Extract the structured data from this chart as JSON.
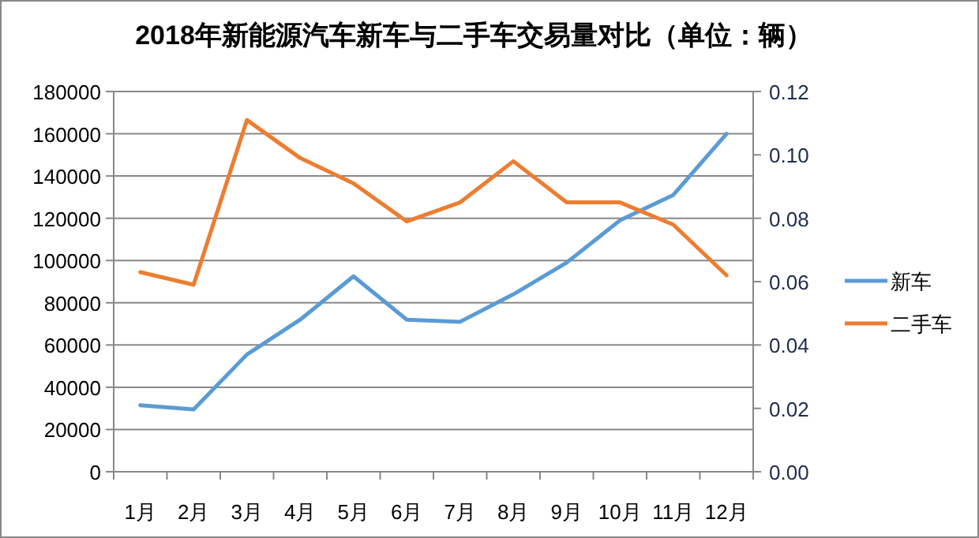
{
  "chart_data": {
    "type": "line",
    "title": "2018年新能源汽车新车与二手车交易量对比（单位：辆）",
    "categories": [
      "1月",
      "2月",
      "3月",
      "4月",
      "5月",
      "6月",
      "7月",
      "8月",
      "9月",
      "10月",
      "11月",
      "12月"
    ],
    "series": [
      {
        "name": "新车",
        "color": "#5b9bd5",
        "values": [
          31500,
          29500,
          55500,
          72000,
          92500,
          72000,
          71000,
          84000,
          99000,
          119000,
          131000,
          160000
        ]
      },
      {
        "name": "二手车",
        "color": "#ed7d31",
        "axis": "y2",
        "values": [
          0.063,
          0.059,
          0.111,
          0.099,
          0.091,
          0.079,
          0.085,
          0.098,
          0.085,
          0.085,
          0.078,
          0.062
        ]
      }
    ],
    "ylim": [
      0,
      180000
    ],
    "yticks": [
      0,
      20000,
      40000,
      60000,
      80000,
      100000,
      120000,
      140000,
      160000,
      180000
    ],
    "y2lim": [
      0,
      0.12
    ],
    "y2ticks": [
      {
        "value": 0,
        "label": "0.00"
      },
      {
        "value": 0.02,
        "label": "0.02"
      },
      {
        "value": 0.04,
        "label": "0.04"
      },
      {
        "value": 0.06,
        "label": "0.06"
      },
      {
        "value": 0.08,
        "label": "0.08"
      },
      {
        "value": 0.1,
        "label": "0.10"
      },
      {
        "value": 0.12,
        "label": "0.12"
      }
    ],
    "grid": "y",
    "legend": "right",
    "marker": "none",
    "line_style": "solid"
  }
}
